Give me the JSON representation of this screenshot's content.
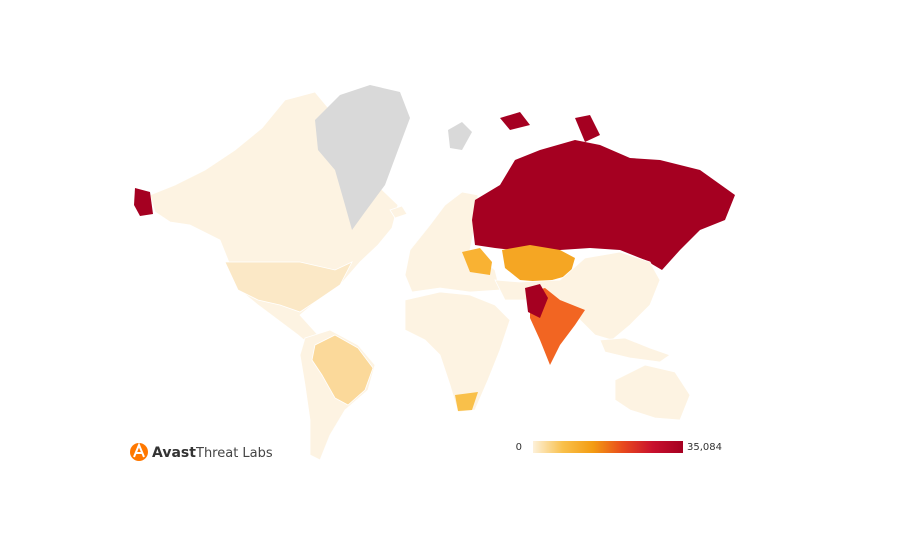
{
  "brand": {
    "name": "Avast",
    "product": "Threat Labs"
  },
  "legend": {
    "min": 0,
    "max": {
      "value": 35084,
      "label": "35,084"
    },
    "colors": [
      "#fdf1da",
      "#f9c04a",
      "#f39c12",
      "#e8491d",
      "#c8102e",
      "#a50021"
    ]
  }
}
